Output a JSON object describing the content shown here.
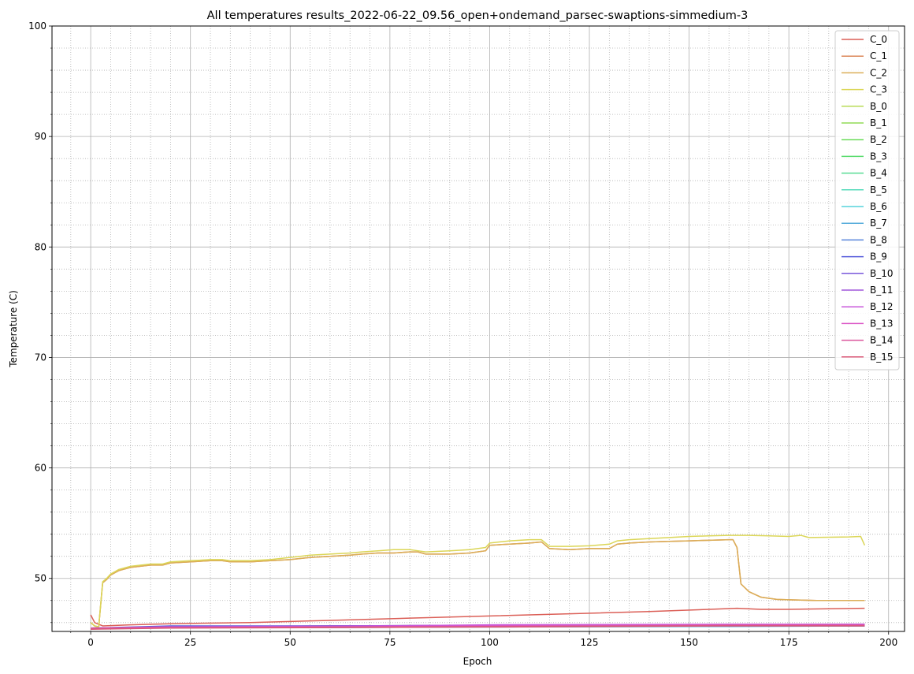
{
  "chart_data": {
    "type": "line",
    "title": "All temperatures results_2022-06-22_09.56_open+ondemand_parsec-swaptions-simmedium-3",
    "xlabel": "Epoch",
    "ylabel": "Temperature (C)",
    "xlim": [
      -9.7,
      204
    ],
    "ylim": [
      45.2,
      100
    ],
    "xticks": [
      0,
      25,
      50,
      75,
      100,
      125,
      150,
      175,
      200
    ],
    "yticks": [
      50,
      60,
      70,
      80,
      90,
      100
    ],
    "x_minor_step": 5,
    "y_minor_step": 2,
    "grid": "major and minor",
    "legend_position": "top-right",
    "series": [
      {
        "name": "C_0",
        "color": "#db5f57",
        "points": [
          [
            0,
            46.7
          ],
          [
            1,
            46.0
          ],
          [
            3,
            45.7
          ],
          [
            10,
            45.8
          ],
          [
            20,
            45.9
          ],
          [
            40,
            46.0
          ],
          [
            60,
            46.2
          ],
          [
            80,
            46.4
          ],
          [
            100,
            46.6
          ],
          [
            120,
            46.8
          ],
          [
            140,
            47.0
          ],
          [
            155,
            47.2
          ],
          [
            162,
            47.3
          ],
          [
            168,
            47.2
          ],
          [
            175,
            47.2
          ],
          [
            185,
            47.25
          ],
          [
            194,
            47.3
          ]
        ]
      },
      {
        "name": "C_1",
        "color": "#db8657",
        "points": [
          [
            0,
            46.0
          ],
          [
            1,
            45.7
          ],
          [
            2,
            45.6
          ],
          [
            3,
            49.6
          ],
          [
            4,
            49.9
          ],
          [
            5,
            50.3
          ],
          [
            7,
            50.7
          ],
          [
            10,
            51.0
          ],
          [
            15,
            51.2
          ],
          [
            18,
            51.2
          ],
          [
            20,
            51.4
          ],
          [
            25,
            51.5
          ],
          [
            30,
            51.6
          ],
          [
            33,
            51.6
          ],
          [
            35,
            51.5
          ],
          [
            40,
            51.5
          ],
          [
            45,
            51.6
          ],
          [
            50,
            51.7
          ],
          [
            55,
            51.9
          ],
          [
            60,
            52.0
          ],
          [
            65,
            52.1
          ],
          [
            68,
            52.2
          ],
          [
            72,
            52.3
          ],
          [
            76,
            52.3
          ],
          [
            80,
            52.4
          ],
          [
            82,
            52.4
          ],
          [
            84,
            52.2
          ],
          [
            90,
            52.2
          ],
          [
            95,
            52.3
          ],
          [
            99,
            52.5
          ],
          [
            100,
            53.0
          ],
          [
            105,
            53.1
          ],
          [
            110,
            53.2
          ],
          [
            113,
            53.3
          ],
          [
            115,
            52.7
          ],
          [
            120,
            52.6
          ],
          [
            125,
            52.7
          ],
          [
            130,
            52.7
          ],
          [
            132,
            53.1
          ],
          [
            135,
            53.2
          ],
          [
            140,
            53.3
          ],
          [
            145,
            53.35
          ],
          [
            150,
            53.4
          ],
          [
            155,
            53.45
          ],
          [
            160,
            53.5
          ],
          [
            161,
            53.5
          ],
          [
            162,
            52.8
          ],
          [
            163,
            49.5
          ],
          [
            165,
            48.8
          ],
          [
            168,
            48.3
          ],
          [
            172,
            48.1
          ],
          [
            176,
            48.05
          ],
          [
            182,
            48.0
          ],
          [
            194,
            48.0
          ]
        ]
      },
      {
        "name": "C_2",
        "color": "#dbae57",
        "points": [
          [
            0,
            46.0
          ],
          [
            1,
            45.7
          ],
          [
            2,
            45.6
          ],
          [
            3,
            49.6
          ],
          [
            4,
            49.9
          ],
          [
            5,
            50.3
          ],
          [
            7,
            50.7
          ],
          [
            10,
            51.0
          ],
          [
            15,
            51.2
          ],
          [
            18,
            51.2
          ],
          [
            20,
            51.4
          ],
          [
            25,
            51.5
          ],
          [
            30,
            51.6
          ],
          [
            33,
            51.6
          ],
          [
            35,
            51.5
          ],
          [
            40,
            51.5
          ],
          [
            45,
            51.6
          ],
          [
            50,
            51.7
          ],
          [
            55,
            51.9
          ],
          [
            60,
            52.0
          ],
          [
            65,
            52.1
          ],
          [
            68,
            52.2
          ],
          [
            72,
            52.3
          ],
          [
            76,
            52.3
          ],
          [
            80,
            52.4
          ],
          [
            82,
            52.4
          ],
          [
            84,
            52.2
          ],
          [
            90,
            52.2
          ],
          [
            95,
            52.3
          ],
          [
            99,
            52.5
          ],
          [
            100,
            53.0
          ],
          [
            105,
            53.1
          ],
          [
            110,
            53.2
          ],
          [
            113,
            53.3
          ],
          [
            115,
            52.7
          ],
          [
            120,
            52.6
          ],
          [
            125,
            52.7
          ],
          [
            130,
            52.7
          ],
          [
            132,
            53.1
          ],
          [
            135,
            53.2
          ],
          [
            140,
            53.3
          ],
          [
            145,
            53.35
          ],
          [
            150,
            53.4
          ],
          [
            155,
            53.45
          ],
          [
            160,
            53.5
          ],
          [
            161,
            53.5
          ],
          [
            162,
            52.8
          ],
          [
            163,
            49.5
          ],
          [
            165,
            48.8
          ],
          [
            168,
            48.3
          ],
          [
            172,
            48.1
          ],
          [
            176,
            48.05
          ],
          [
            182,
            48.0
          ],
          [
            194,
            48.0
          ]
        ]
      },
      {
        "name": "C_3",
        "color": "#dbd657",
        "points": [
          [
            0,
            46.0
          ],
          [
            1,
            45.7
          ],
          [
            2,
            45.6
          ],
          [
            3,
            49.7
          ],
          [
            4,
            50.0
          ],
          [
            5,
            50.4
          ],
          [
            7,
            50.8
          ],
          [
            10,
            51.1
          ],
          [
            15,
            51.3
          ],
          [
            18,
            51.3
          ],
          [
            20,
            51.5
          ],
          [
            25,
            51.6
          ],
          [
            30,
            51.7
          ],
          [
            33,
            51.7
          ],
          [
            35,
            51.6
          ],
          [
            40,
            51.6
          ],
          [
            45,
            51.7
          ],
          [
            50,
            51.9
          ],
          [
            55,
            52.1
          ],
          [
            60,
            52.2
          ],
          [
            65,
            52.3
          ],
          [
            68,
            52.4
          ],
          [
            72,
            52.5
          ],
          [
            76,
            52.6
          ],
          [
            80,
            52.6
          ],
          [
            82,
            52.5
          ],
          [
            84,
            52.4
          ],
          [
            90,
            52.5
          ],
          [
            95,
            52.6
          ],
          [
            99,
            52.8
          ],
          [
            100,
            53.2
          ],
          [
            105,
            53.4
          ],
          [
            110,
            53.5
          ],
          [
            113,
            53.5
          ],
          [
            115,
            52.9
          ],
          [
            120,
            52.9
          ],
          [
            125,
            52.95
          ],
          [
            130,
            53.1
          ],
          [
            132,
            53.4
          ],
          [
            135,
            53.5
          ],
          [
            140,
            53.6
          ],
          [
            145,
            53.7
          ],
          [
            150,
            53.8
          ],
          [
            155,
            53.85
          ],
          [
            160,
            53.9
          ],
          [
            165,
            53.9
          ],
          [
            170,
            53.85
          ],
          [
            175,
            53.8
          ],
          [
            178,
            53.9
          ],
          [
            180,
            53.7
          ],
          [
            190,
            53.75
          ],
          [
            193,
            53.8
          ],
          [
            194,
            53.0
          ]
        ]
      },
      {
        "name": "B_0",
        "color": "#b8db57",
        "points": [
          [
            0,
            45.5
          ],
          [
            20,
            45.6
          ],
          [
            60,
            45.7
          ],
          [
            100,
            45.75
          ],
          [
            160,
            45.8
          ],
          [
            194,
            45.85
          ]
        ]
      },
      {
        "name": "B_1",
        "color": "#91db57",
        "points": [
          [
            0,
            45.5
          ],
          [
            20,
            45.6
          ],
          [
            60,
            45.7
          ],
          [
            100,
            45.7
          ],
          [
            160,
            45.8
          ],
          [
            194,
            45.8
          ]
        ]
      },
      {
        "name": "B_2",
        "color": "#69db57",
        "points": [
          [
            0,
            45.5
          ],
          [
            20,
            45.6
          ],
          [
            60,
            45.65
          ],
          [
            100,
            45.7
          ],
          [
            160,
            45.75
          ],
          [
            194,
            45.8
          ]
        ]
      },
      {
        "name": "B_3",
        "color": "#57db6b",
        "points": [
          [
            0,
            45.5
          ],
          [
            20,
            45.6
          ],
          [
            60,
            45.6
          ],
          [
            100,
            45.7
          ],
          [
            160,
            45.75
          ],
          [
            194,
            45.75
          ]
        ]
      },
      {
        "name": "B_4",
        "color": "#57db93",
        "points": [
          [
            0,
            45.5
          ],
          [
            20,
            45.55
          ],
          [
            60,
            45.6
          ],
          [
            100,
            45.65
          ],
          [
            160,
            45.7
          ],
          [
            194,
            45.75
          ]
        ]
      },
      {
        "name": "B_5",
        "color": "#57dbbb",
        "points": [
          [
            0,
            45.5
          ],
          [
            20,
            45.55
          ],
          [
            60,
            45.6
          ],
          [
            100,
            45.65
          ],
          [
            160,
            45.7
          ],
          [
            194,
            45.7
          ]
        ]
      },
      {
        "name": "B_6",
        "color": "#57d3db",
        "points": [
          [
            0,
            45.5
          ],
          [
            20,
            45.55
          ],
          [
            60,
            45.6
          ],
          [
            100,
            45.6
          ],
          [
            160,
            45.7
          ],
          [
            194,
            45.7
          ]
        ]
      },
      {
        "name": "B_7",
        "color": "#57acdb",
        "points": [
          [
            0,
            45.5
          ],
          [
            20,
            45.55
          ],
          [
            60,
            45.55
          ],
          [
            100,
            45.6
          ],
          [
            160,
            45.65
          ],
          [
            194,
            45.7
          ]
        ]
      },
      {
        "name": "B_8",
        "color": "#5784db",
        "points": [
          [
            0,
            45.5
          ],
          [
            20,
            45.6
          ],
          [
            60,
            45.6
          ],
          [
            100,
            45.65
          ],
          [
            160,
            45.7
          ],
          [
            194,
            45.7
          ]
        ]
      },
      {
        "name": "B_9",
        "color": "#575cdb",
        "points": [
          [
            0,
            45.5
          ],
          [
            20,
            45.7
          ],
          [
            60,
            45.7
          ],
          [
            100,
            45.75
          ],
          [
            160,
            45.8
          ],
          [
            194,
            45.8
          ]
        ]
      },
      {
        "name": "B_10",
        "color": "#7957db",
        "points": [
          [
            0,
            45.5
          ],
          [
            20,
            45.65
          ],
          [
            60,
            45.7
          ],
          [
            100,
            45.7
          ],
          [
            160,
            45.75
          ],
          [
            194,
            45.8
          ]
        ]
      },
      {
        "name": "B_11",
        "color": "#a157db",
        "points": [
          [
            0,
            45.5
          ],
          [
            20,
            45.6
          ],
          [
            60,
            45.7
          ],
          [
            100,
            45.75
          ],
          [
            160,
            45.8
          ],
          [
            194,
            45.85
          ]
        ]
      },
      {
        "name": "B_12",
        "color": "#c857db",
        "points": [
          [
            0,
            45.5
          ],
          [
            20,
            45.6
          ],
          [
            60,
            45.65
          ],
          [
            100,
            45.8
          ],
          [
            160,
            45.85
          ],
          [
            194,
            45.85
          ]
        ]
      },
      {
        "name": "B_13",
        "color": "#db57c6",
        "points": [
          [
            0,
            45.5
          ],
          [
            20,
            45.6
          ],
          [
            60,
            45.6
          ],
          [
            100,
            45.7
          ],
          [
            160,
            45.8
          ],
          [
            194,
            45.8
          ]
        ]
      },
      {
        "name": "B_14",
        "color": "#db579e",
        "points": [
          [
            0,
            45.5
          ],
          [
            20,
            45.55
          ],
          [
            60,
            45.6
          ],
          [
            100,
            45.65
          ],
          [
            160,
            45.75
          ],
          [
            194,
            45.75
          ]
        ]
      },
      {
        "name": "B_15",
        "color": "#db5776",
        "points": [
          [
            0,
            45.4
          ],
          [
            20,
            45.5
          ],
          [
            60,
            45.55
          ],
          [
            100,
            45.6
          ],
          [
            160,
            45.7
          ],
          [
            194,
            45.7
          ]
        ]
      }
    ]
  }
}
